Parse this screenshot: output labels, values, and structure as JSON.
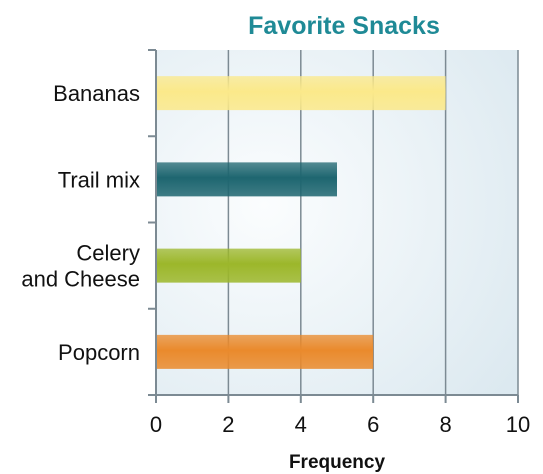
{
  "chart_data": {
    "type": "bar",
    "orientation": "horizontal",
    "title": "Favorite Snacks",
    "xlabel": "Frequency",
    "ylabel": "",
    "categories": [
      [
        "Bananas"
      ],
      [
        "Trail mix"
      ],
      [
        "Celery",
        "and Cheese"
      ],
      [
        "Popcorn"
      ]
    ],
    "values": [
      8,
      5,
      4,
      6
    ],
    "xlim": [
      0,
      10
    ],
    "xticks": [
      "0",
      "2",
      "4",
      "6",
      "8",
      "10"
    ],
    "grid": true,
    "legend": "none",
    "colors": {
      "title": "#1f8a96",
      "plot_background": "#e3eef4",
      "gridline": "#7c8a93",
      "bars": [
        "#fbe98a",
        "#1e6670",
        "#9cb72a",
        "#ea8a2c"
      ]
    }
  }
}
